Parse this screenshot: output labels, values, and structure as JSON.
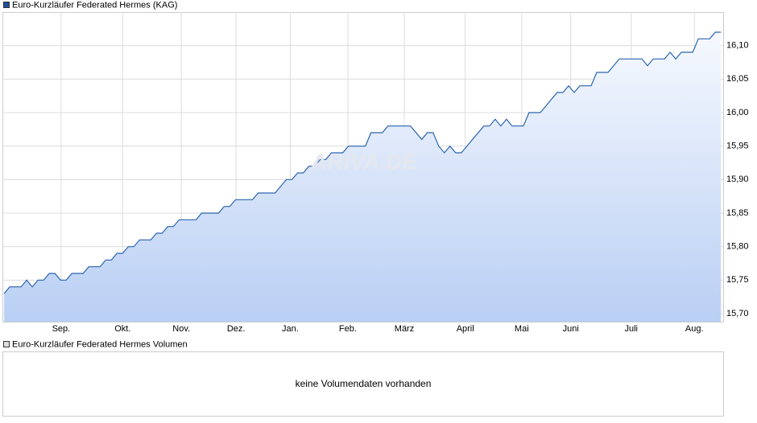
{
  "chart_data": {
    "type": "area",
    "series": [
      {
        "name": "Euro-Kurzläufer Federated Hermes (KAG)",
        "color": "#2a64b0",
        "values": [
          15.73,
          15.74,
          15.74,
          15.74,
          15.75,
          15.74,
          15.75,
          15.75,
          15.76,
          15.76,
          15.75,
          15.75,
          15.76,
          15.76,
          15.76,
          15.77,
          15.77,
          15.77,
          15.78,
          15.78,
          15.79,
          15.79,
          15.8,
          15.8,
          15.81,
          15.81,
          15.81,
          15.82,
          15.82,
          15.83,
          15.83,
          15.84,
          15.84,
          15.84,
          15.84,
          15.85,
          15.85,
          15.85,
          15.85,
          15.86,
          15.86,
          15.87,
          15.87,
          15.87,
          15.87,
          15.88,
          15.88,
          15.88,
          15.88,
          15.89,
          15.9,
          15.9,
          15.91,
          15.91,
          15.92,
          15.92,
          15.93,
          15.93,
          15.94,
          15.94,
          15.94,
          15.95,
          15.95,
          15.95,
          15.95,
          15.97,
          15.97,
          15.97,
          15.98,
          15.98,
          15.98,
          15.98,
          15.98,
          15.97,
          15.96,
          15.97,
          15.97,
          15.95,
          15.94,
          15.95,
          15.94,
          15.94,
          15.95,
          15.96,
          15.97,
          15.98,
          15.98,
          15.99,
          15.98,
          15.99,
          15.98,
          15.98,
          15.98,
          16.0,
          16.0,
          16.0,
          16.01,
          16.02,
          16.03,
          16.03,
          16.04,
          16.03,
          16.04,
          16.04,
          16.04,
          16.06,
          16.06,
          16.06,
          16.07,
          16.08,
          16.08,
          16.08,
          16.08,
          16.08,
          16.07,
          16.08,
          16.08,
          16.08,
          16.09,
          16.08,
          16.09,
          16.09,
          16.09,
          16.11,
          16.11,
          16.11,
          16.12,
          16.12
        ]
      }
    ],
    "xlim": [
      -0.3,
      127.4
    ],
    "xticks": [
      {
        "value": 10.1,
        "label": "Sep."
      },
      {
        "value": 21,
        "label": "Okt."
      },
      {
        "value": 31.4,
        "label": "Nov."
      },
      {
        "value": 41.1,
        "label": "Dez."
      },
      {
        "value": 50.7,
        "label": "Jan."
      },
      {
        "value": 60.9,
        "label": "Feb."
      },
      {
        "value": 70.9,
        "label": "März"
      },
      {
        "value": 81.7,
        "label": "April"
      },
      {
        "value": 91.7,
        "label": "Mai"
      },
      {
        "value": 100.4,
        "label": "Juni"
      },
      {
        "value": 111.1,
        "label": "Juli"
      },
      {
        "value": 122.3,
        "label": "Aug."
      }
    ],
    "ylim": [
      15.688,
      16.15
    ],
    "yticks": [
      {
        "value": 15.7,
        "label": "15,70"
      },
      {
        "value": 15.75,
        "label": "15,75"
      },
      {
        "value": 15.8,
        "label": "15,80"
      },
      {
        "value": 15.85,
        "label": "15,85"
      },
      {
        "value": 15.9,
        "label": "15,90"
      },
      {
        "value": 15.95,
        "label": "15,95"
      },
      {
        "value": 16.0,
        "label": "16,00"
      },
      {
        "value": 16.05,
        "label": "16,05"
      },
      {
        "value": 16.1,
        "label": "16,10"
      }
    ],
    "grid": true
  },
  "watermark": "ARIVA.DE",
  "volume_panel": {
    "legend": "Euro-Kurzläufer Federated Hermes Volumen",
    "message": "keine Volumendaten vorhanden"
  }
}
